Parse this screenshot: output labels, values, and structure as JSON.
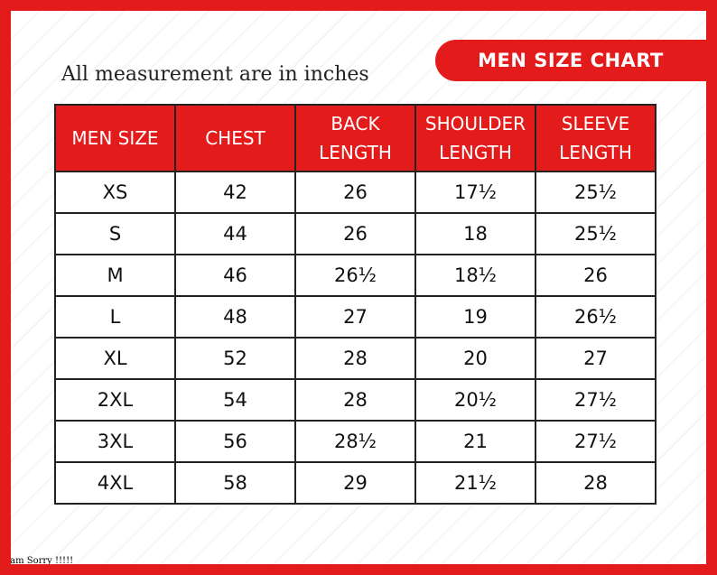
{
  "header": {
    "banner": "MEN SIZE CHART",
    "subtitle": "All measurement are in inches"
  },
  "table": {
    "columns": [
      "MEN SIZE",
      "CHEST",
      "BACK LENGTH",
      "SHOULDER LENGTH",
      "SLEEVE LENGTH"
    ],
    "rows": [
      [
        "XS",
        "42",
        "26",
        "17½",
        "25½"
      ],
      [
        "S",
        "44",
        "26",
        "18",
        "25½"
      ],
      [
        "M",
        "46",
        "26½",
        "18½",
        "26"
      ],
      [
        "L",
        "48",
        "27",
        "19",
        "26½"
      ],
      [
        "XL",
        "52",
        "28",
        "20",
        "27"
      ],
      [
        "2XL",
        "54",
        "28",
        "20½",
        "27½"
      ],
      [
        "3XL",
        "56",
        "28½",
        "21",
        "27½"
      ],
      [
        "4XL",
        "58",
        "29",
        "21½",
        "28"
      ]
    ]
  },
  "footer": {
    "note": "I am Sorry !!!!!"
  }
}
